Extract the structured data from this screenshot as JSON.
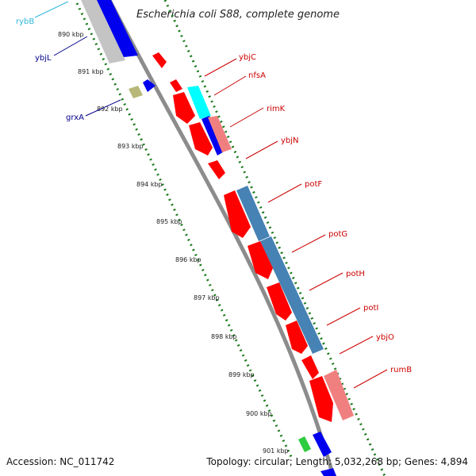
{
  "title": "Escherichia coli S88, complete genome",
  "footer": {
    "accession": "Accession: NC_011742",
    "topology": "Topology: circular; Length: 5,032,268 bp; Genes: 4,894"
  },
  "colors": {
    "cds": "#ff0000",
    "backbone": "#8c8c8c",
    "gc_skew": "#1a7a1a",
    "label_red": "#cc0000",
    "label_blue": "#00008b",
    "label_cyan": "#2fb7d9"
  },
  "kbp_ticks": [
    "890 kbp",
    "891 kbp",
    "892 kbp",
    "893 kbp",
    "894 kbp",
    "895 kbp",
    "896 kbp",
    "897 kbp",
    "898 kbp",
    "899 kbp",
    "900 kbp",
    "901 kbp"
  ],
  "genes_left": [
    {
      "name": "rybB",
      "color": "#2fb7d9"
    },
    {
      "name": "ybjL",
      "color": "#00008b"
    },
    {
      "name": "grxA",
      "color": "#00008b"
    }
  ],
  "genes_right": [
    {
      "name": "ybjC"
    },
    {
      "name": "nfsA"
    },
    {
      "name": "rimK"
    },
    {
      "name": "ybjN"
    },
    {
      "name": "potF"
    },
    {
      "name": "potG"
    },
    {
      "name": "potH"
    },
    {
      "name": "potI"
    },
    {
      "name": "ybjO"
    },
    {
      "name": "rumB"
    }
  ]
}
